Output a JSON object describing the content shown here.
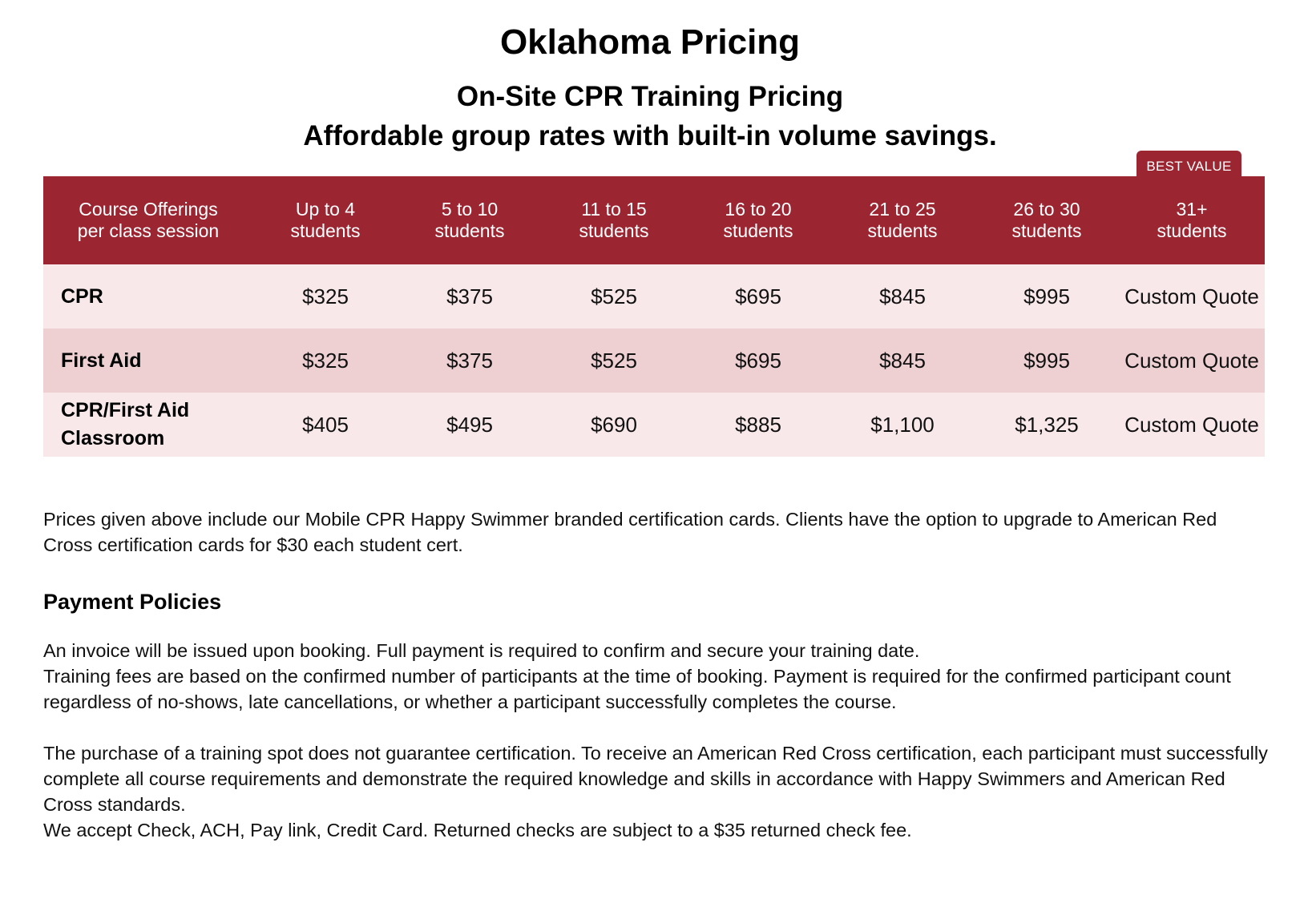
{
  "page": {
    "title": "Oklahoma Pricing",
    "subtitle": "On-Site CPR Training Pricing",
    "tagline": "Affordable group rates with built-in volume savings."
  },
  "badge": "BEST VALUE",
  "pricing_table": {
    "headers": [
      "Course Offerings\nper class session",
      "Up to 4\nstudents",
      "5 to 10\nstudents",
      "11 to 15\nstudents",
      "16 to 20\nstudents",
      "21 to 25\nstudents",
      "26 to 30\nstudents",
      "31+\nstudents"
    ],
    "rows": [
      {
        "course": "CPR",
        "prices": [
          "$325",
          "$375",
          "$525",
          "$695",
          "$845",
          "$995",
          "Custom Quote"
        ]
      },
      {
        "course": "First Aid",
        "prices": [
          "$325",
          "$375",
          "$525",
          "$695",
          "$845",
          "$995",
          "Custom Quote"
        ]
      },
      {
        "course": "CPR/First Aid\nClassroom",
        "prices": [
          "$405",
          "$495",
          "$690",
          "$885",
          "$1,100",
          "$1,325",
          "Custom Quote"
        ]
      }
    ]
  },
  "note": "Prices given above include our Mobile CPR Happy Swimmer branded certification cards. Clients have the option to upgrade to American Red Cross certification cards for $30 each student cert.",
  "payment_policies": {
    "heading": "Payment Policies",
    "paragraphs": [
      "An invoice will be issued upon booking. Full payment is required to confirm and secure your training date.",
      "Training fees are based on the confirmed number of participants at the time of booking. Payment is required for the confirmed participant count regardless of no-shows, late cancellations, or whether a participant successfully completes the course.",
      "The purchase of a training spot does not guarantee certification. To receive an American Red Cross certification, each participant must successfully complete all course requirements and demonstrate the required knowledge and skills in accordance with Happy Swimmers and American Red Cross standards.",
      "We accept Check, ACH, Pay link, Credit Card. Returned checks are subject to a $35 returned check fee."
    ]
  },
  "colors": {
    "header_bg": "#9b2632",
    "row_light": "#f8e8e9",
    "row_dark": "#eecfd2"
  }
}
